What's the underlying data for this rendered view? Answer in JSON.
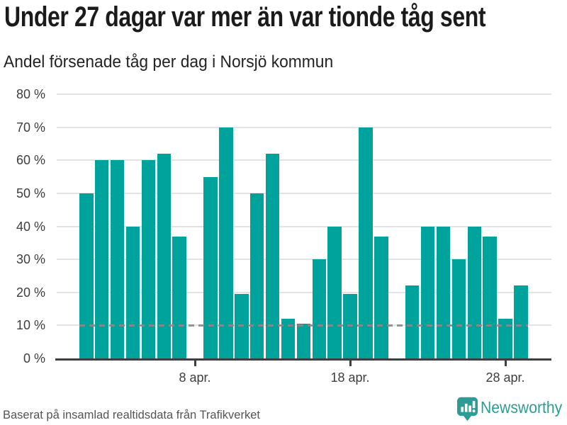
{
  "chart_data": {
    "type": "bar",
    "title": "Under 27 dagar var mer än var tionde tåg sent",
    "subtitle": "Andel försenade tåg per dag i Norsjö kommun",
    "source_note": "Baserat på insamlad realtidsdata från Trafikverket",
    "unit": "%",
    "month_label": "apr.",
    "ylim": [
      0,
      80
    ],
    "grid": "horizontal",
    "y_tick_labels": [
      "0 %",
      "10 %",
      "20 %",
      "30 %",
      "40 %",
      "50 %",
      "60 %",
      "70 %",
      "80 %"
    ],
    "x_tick_labels": [
      {
        "day": 8,
        "label": "8 apr."
      },
      {
        "day": 18,
        "label": "18 apr."
      },
      {
        "day": 28,
        "label": "28 apr."
      }
    ],
    "reference_line": {
      "value": 10,
      "style": "dashed"
    },
    "points": [
      {
        "day": 1,
        "value": 50
      },
      {
        "day": 2,
        "value": 60
      },
      {
        "day": 3,
        "value": 60
      },
      {
        "day": 4,
        "value": 40
      },
      {
        "day": 5,
        "value": 60
      },
      {
        "day": 6,
        "value": 62
      },
      {
        "day": 7,
        "value": 37
      },
      {
        "day": 8,
        "value": null
      },
      {
        "day": 9,
        "value": 55
      },
      {
        "day": 10,
        "value": 70
      },
      {
        "day": 11,
        "value": 19.5
      },
      {
        "day": 12,
        "value": 50
      },
      {
        "day": 13,
        "value": 62
      },
      {
        "day": 14,
        "value": 12
      },
      {
        "day": 15,
        "value": 10.5
      },
      {
        "day": 16,
        "value": 30
      },
      {
        "day": 17,
        "value": 40
      },
      {
        "day": 18,
        "value": 19.5
      },
      {
        "day": 19,
        "value": 70
      },
      {
        "day": 20,
        "value": 37
      },
      {
        "day": 21,
        "value": null
      },
      {
        "day": 22,
        "value": 22
      },
      {
        "day": 23,
        "value": 40
      },
      {
        "day": 24,
        "value": 40
      },
      {
        "day": 25,
        "value": 30
      },
      {
        "day": 26,
        "value": 40
      },
      {
        "day": 27,
        "value": 37
      },
      {
        "day": 28,
        "value": 12
      },
      {
        "day": 29,
        "value": 22
      },
      {
        "day": 30,
        "value": null
      }
    ],
    "colors": {
      "bar": "#00a39b",
      "gridline": "#e3e3e3",
      "axis": "#3f3f3f",
      "reference_line": "#8a8a8a"
    }
  },
  "branding": {
    "logo_text": "Newsworthy",
    "logo_color": "#2d9c94"
  }
}
